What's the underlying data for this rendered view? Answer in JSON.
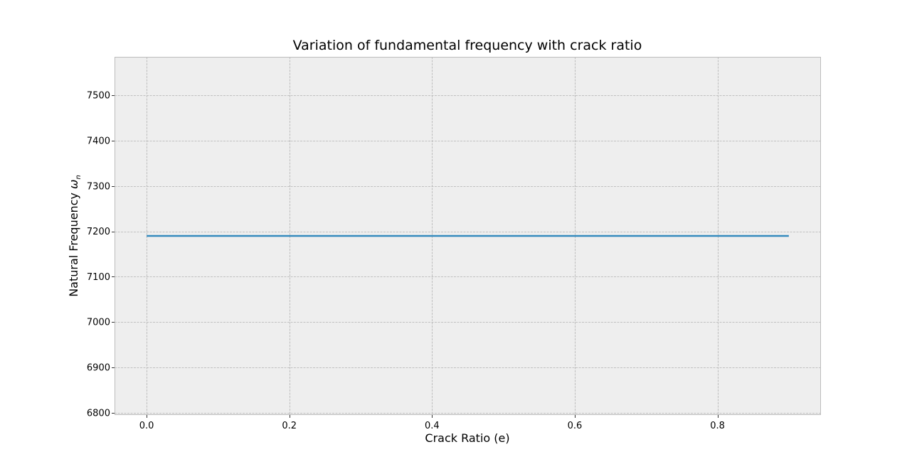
{
  "chart_data": {
    "type": "line",
    "title": "Variation of fundamental frequency with crack ratio",
    "xlabel": "Crack Ratio (e)",
    "ylabel_text": "Natural Frequency ",
    "ylabel_symbol": "ω",
    "ylabel_subscript": "n",
    "xlim": [
      -0.045,
      0.945
    ],
    "ylim": [
      6795,
      7585
    ],
    "xticks": [
      0.0,
      0.2,
      0.4,
      0.6,
      0.8
    ],
    "xtick_labels": [
      "0.0",
      "0.2",
      "0.4",
      "0.6",
      "0.8"
    ],
    "yticks": [
      6800,
      6900,
      7000,
      7100,
      7200,
      7300,
      7400,
      7500
    ],
    "ytick_labels": [
      "6800",
      "6900",
      "7000",
      "7100",
      "7200",
      "7300",
      "7400",
      "7500"
    ],
    "grid": true,
    "style": "bmh",
    "colors": {
      "background": "#eeeeee",
      "frame": "#bcbcbc",
      "grid": "#b2b2b2",
      "line": "#348abd"
    },
    "series": [
      {
        "x": [
          0.0,
          0.1,
          0.2,
          0.3,
          0.4,
          0.5,
          0.6,
          0.7,
          0.8,
          0.9
        ],
        "y": [
          7190,
          7190,
          7190,
          7190,
          7190,
          7190,
          7190,
          7190,
          7190,
          7190
        ]
      }
    ]
  }
}
